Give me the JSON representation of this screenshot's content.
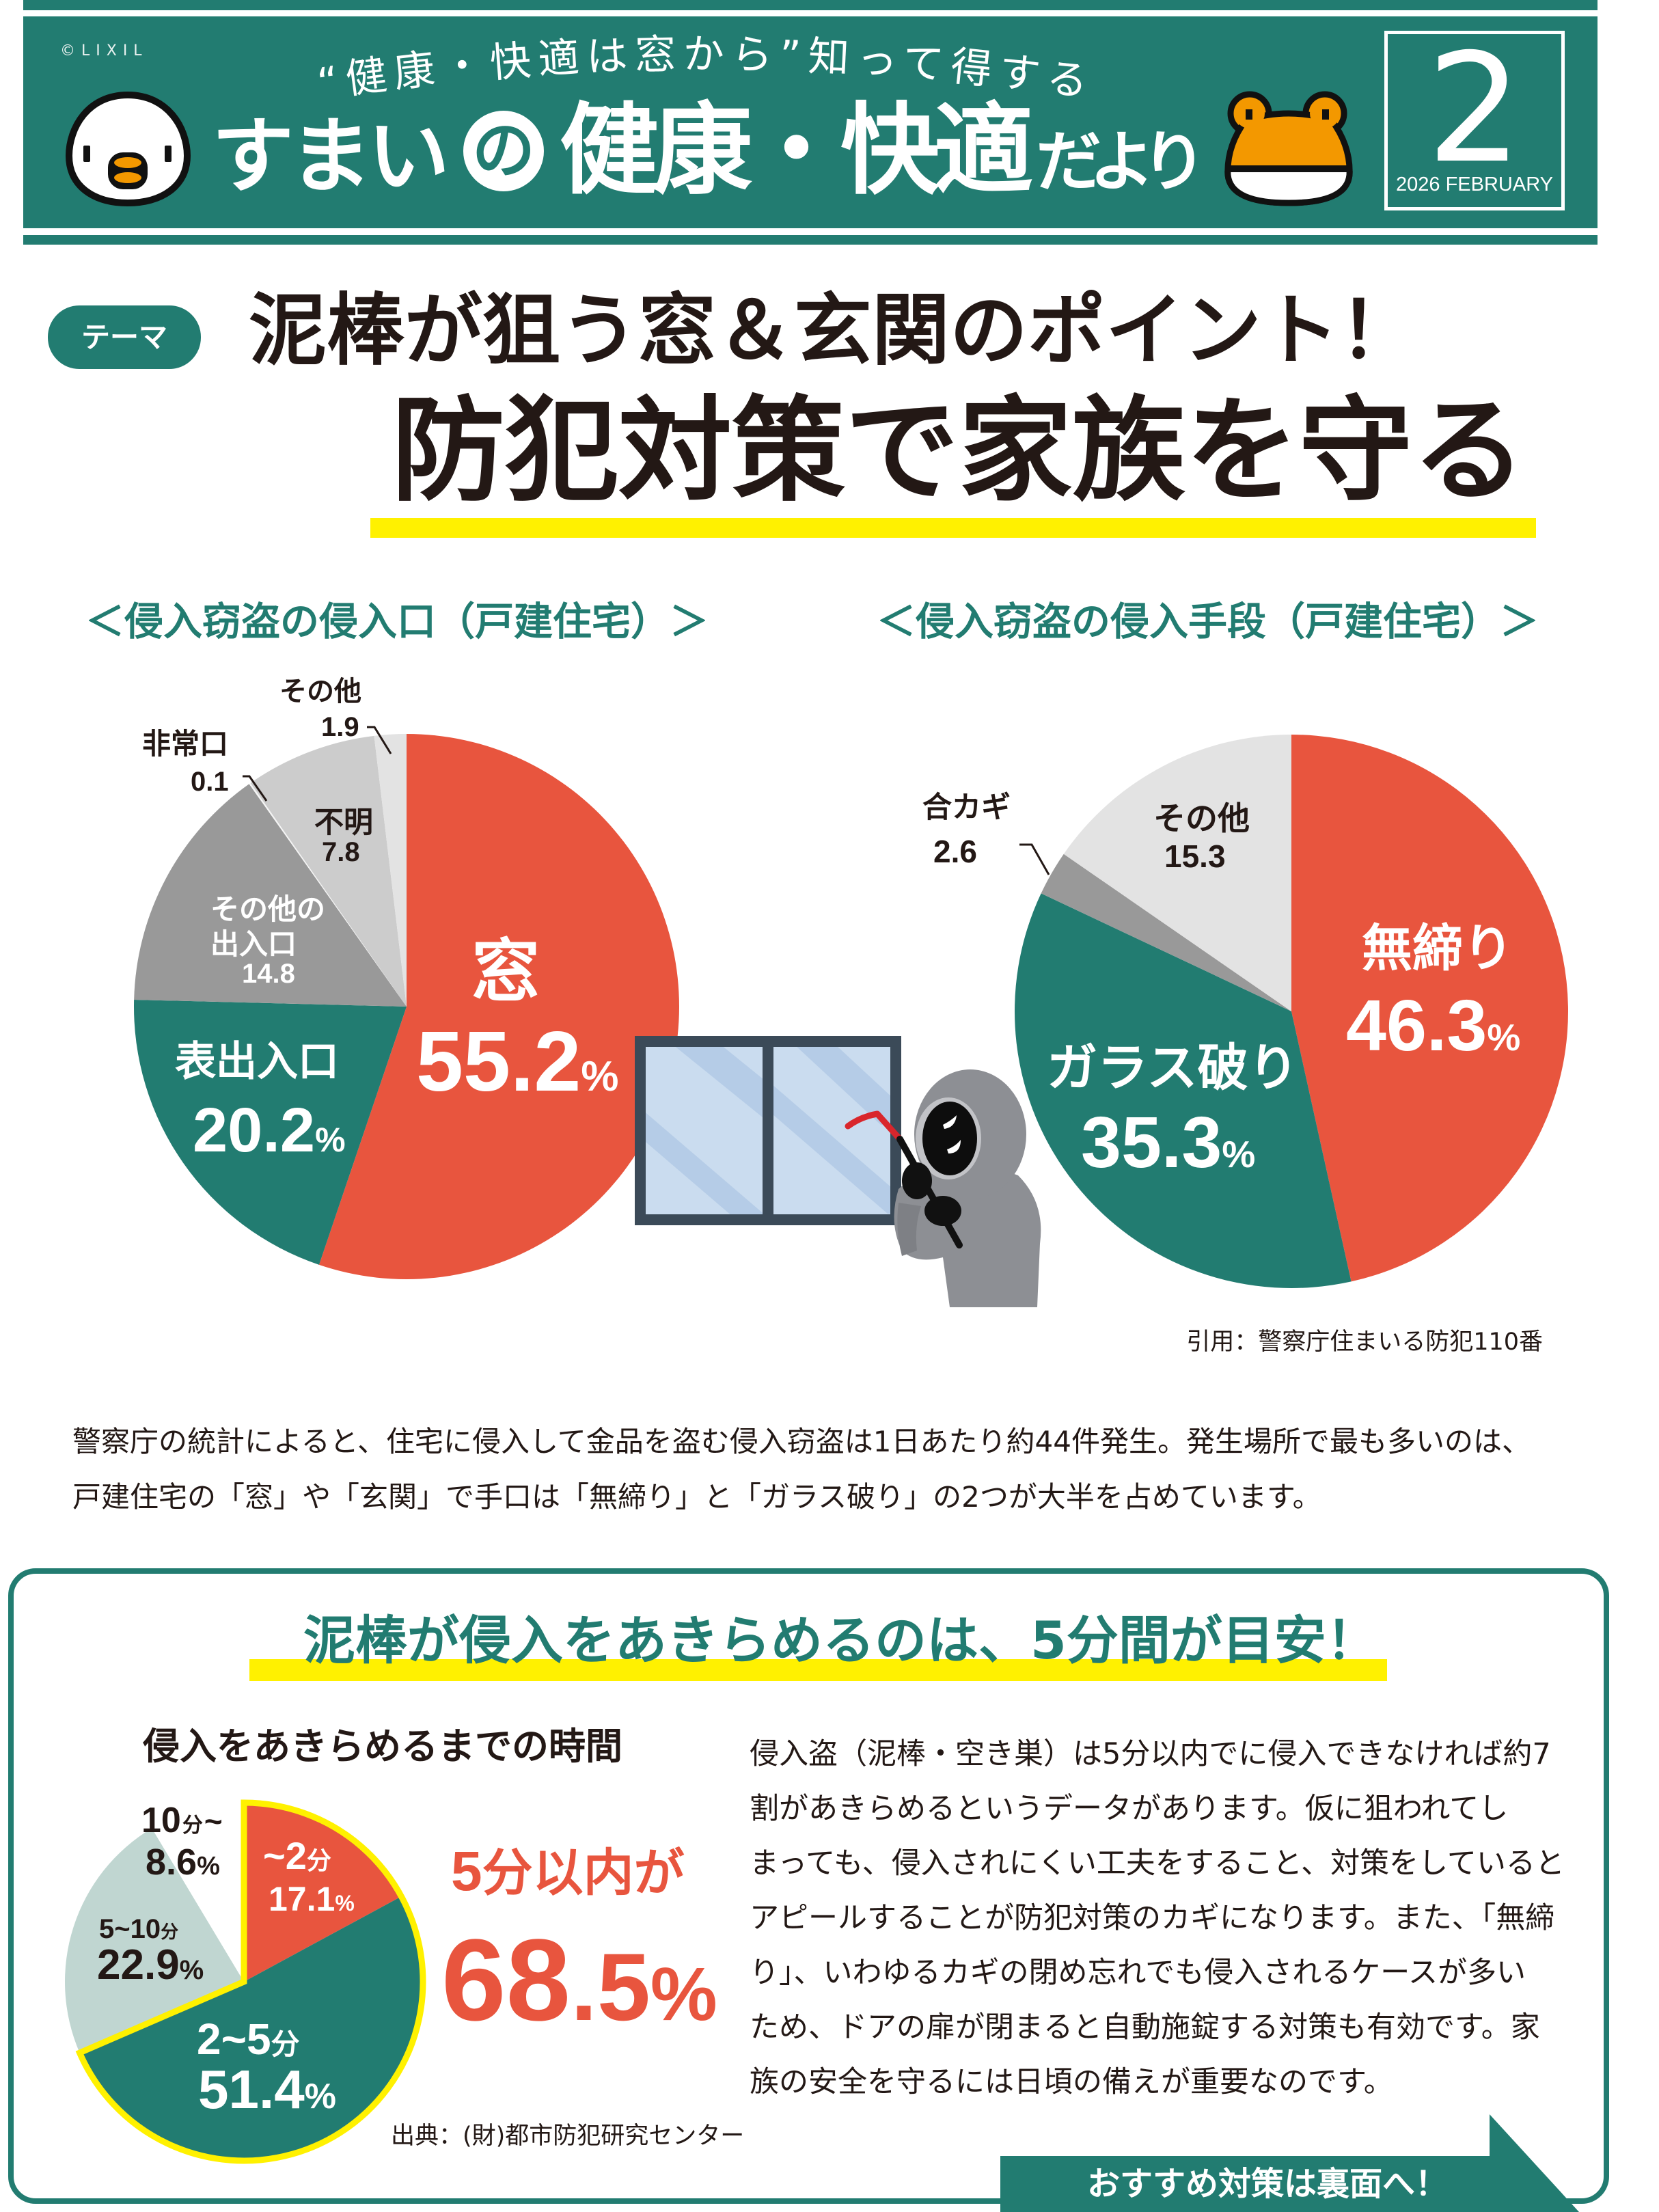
{
  "header": {
    "copyright": "©LIXIL",
    "subtitle": "“健康・快適は窓から”知って得する",
    "title_part1": "すまい",
    "title_circled": "の",
    "title_part2": "健康・快適",
    "title_part3": "だより",
    "issue_number": "2",
    "issue_date": "2026 FEBRUARY",
    "mascots": [
      "chick-icon",
      "frog-icon"
    ]
  },
  "theme": {
    "tag": "テーマ",
    "headline": "泥棒が狙う窓＆玄関のポイント！",
    "title": "防犯対策で家族を守る"
  },
  "charts_section": {
    "source": "引用：警察庁住まいる防犯110番"
  },
  "intro": [
    "警察庁の統計によると、住宅に侵入して金品を盗む侵入窃盗は1日あたり約44件発生。発生場所で最も多いのは、",
    "戸建住宅の「窓」や「玄関」で手口は「無締り」と「ガラス破り」の2つが大半を占めています。"
  ],
  "tips_box": {
    "heading": "泥棒が侵入をあきらめるのは、5分間が目安！",
    "chart_title": "侵入をあきらめるまでの時間",
    "highlight": {
      "prefix_num": "5",
      "prefix_text": "分以内が",
      "value_int": "68",
      "value_dec": ".5",
      "unit": "%"
    },
    "source": "出典：(財)都市防犯研究センター",
    "body_lines": [
      "侵入盗（泥棒・空き巣）は5分以内でに侵入できなければ約7",
      "割があきらめるというデータがあります。仮に狙われてし",
      "まっても、侵入されにくい工夫をすること、対策をしていると",
      "アピールすることが防犯対策のカギになります。また、「無締",
      "り」、いわゆるカギの閉め忘れでも侵入されるケースが多い",
      "ため、ドアの扉が閉まると自動施錠する対策も有効です。家",
      "族の安全を守るには日頃の備えが重要なのです。"
    ],
    "cta": "おすすめ対策は裏面へ！"
  },
  "colors": {
    "teal": "#227C71",
    "red": "#E8553E",
    "yellow": "#FFF100",
    "text": "#231815",
    "mascot_orange": "#F39800"
  },
  "chart_data": [
    {
      "type": "pie",
      "title": "＜侵入窃盗の侵入口（戸建住宅）＞",
      "unit": "%",
      "categories": [
        "窓",
        "表出入口",
        "その他の出入口",
        "非常口",
        "不明",
        "その他"
      ],
      "values": [
        55.2,
        20.2,
        14.8,
        0.1,
        7.8,
        1.9
      ],
      "colors": [
        "#E8553E",
        "#227C71",
        "#999999",
        "#F4F4F4",
        "#CCCCCC",
        "#E3E3E3"
      ],
      "label_lines": [
        [
          "窓"
        ],
        [
          "表出入口"
        ],
        [
          "その他の",
          "出入口"
        ],
        [
          "非常口"
        ],
        [
          "不明"
        ],
        [
          "その他"
        ]
      ],
      "start": "12 o'clock",
      "direction": "clockwise",
      "legend": "direct labels"
    },
    {
      "type": "pie",
      "title": "＜侵入窃盗の侵入手段（戸建住宅）＞",
      "unit": "%",
      "categories": [
        "無締り",
        "ガラス破り",
        "合カギ",
        "その他"
      ],
      "values": [
        46.3,
        35.3,
        2.6,
        15.3
      ],
      "colors": [
        "#E8553E",
        "#227C71",
        "#999999",
        "#E3E3E3"
      ],
      "start": "12 o'clock",
      "direction": "clockwise",
      "legend": "direct labels"
    },
    {
      "type": "pie",
      "title": "侵入をあきらめるまでの時間",
      "unit": "%",
      "categories": [
        "~2分",
        "2~5分",
        "5~10分",
        "10分~"
      ],
      "values": [
        17.1,
        51.4,
        22.9,
        8.6
      ],
      "colors": [
        "#E8553E",
        "#227C71",
        "#C0D6D1",
        "#FFFFFF"
      ],
      "label_parts": [
        [
          "~2",
          "分"
        ],
        [
          "2~5",
          "分"
        ],
        [
          "5~10",
          "分"
        ],
        [
          "10",
          "分",
          "~"
        ]
      ],
      "highlight": {
        "slices": [
          0,
          1
        ],
        "total": 68.5,
        "stroke": "#FFF100",
        "label": "5分以内が 68.5%"
      },
      "start": "12 o'clock",
      "direction": "clockwise",
      "legend": "direct labels"
    }
  ]
}
